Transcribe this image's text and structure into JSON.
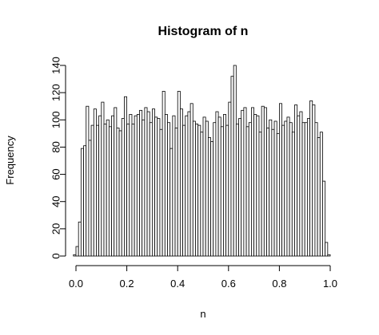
{
  "chart_data": {
    "type": "bar",
    "title": "Histogram of n",
    "xlabel": "n",
    "ylabel": "Frequency",
    "xlim": [
      -0.03,
      1.03
    ],
    "ylim": [
      0,
      140
    ],
    "x_ticks": [
      0.0,
      0.2,
      0.4,
      0.6,
      0.8,
      1.0
    ],
    "x_tick_labels": [
      "0.0",
      "0.2",
      "0.4",
      "0.6",
      "0.8",
      "1.0"
    ],
    "y_ticks": [
      0,
      20,
      40,
      60,
      80,
      100,
      120,
      140
    ],
    "y_tick_labels": [
      "0",
      "20",
      "40",
      "60",
      "80",
      "100",
      "120",
      "140"
    ],
    "bin_width": 0.01,
    "bin_start": -0.01,
    "values": [
      1,
      7,
      25,
      79,
      81,
      110,
      85,
      96,
      108,
      96,
      103,
      113,
      97,
      100,
      95,
      103,
      109,
      94,
      92,
      101,
      117,
      97,
      104,
      97,
      103,
      104,
      107,
      100,
      109,
      106,
      98,
      108,
      102,
      101,
      93,
      121,
      104,
      98,
      79,
      103,
      94,
      121,
      108,
      96,
      103,
      106,
      112,
      99,
      97,
      96,
      91,
      102,
      99,
      87,
      84,
      98,
      106,
      102,
      95,
      104,
      96,
      113,
      132,
      140,
      97,
      101,
      107,
      109,
      95,
      98,
      109,
      104,
      103,
      91,
      110,
      109,
      94,
      100,
      93,
      99,
      90,
      112,
      96,
      99,
      102,
      98,
      91,
      111,
      103,
      106,
      98,
      98,
      101,
      114,
      111,
      98,
      87,
      91,
      55,
      10,
      1
    ]
  }
}
